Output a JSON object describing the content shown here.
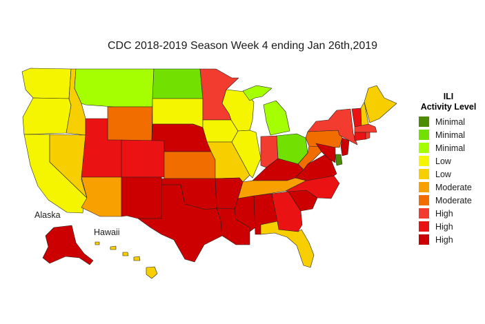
{
  "title": "CDC 2018-2019 Season Week 4 ending Jan 26th,2019",
  "map_labels": {
    "alaska": "Alaska",
    "hawaii": "Hawaii"
  },
  "legend": {
    "title_line1": "ILI",
    "title_line2": "Activity Level",
    "items": [
      {
        "label": "Minimal",
        "color": "#4c8c00"
      },
      {
        "label": "Minimal",
        "color": "#72e000"
      },
      {
        "label": "Minimal",
        "color": "#a6ff00"
      },
      {
        "label": "Low",
        "color": "#f5f500"
      },
      {
        "label": "Low",
        "color": "#f7cf00"
      },
      {
        "label": "Moderate",
        "color": "#f7a000"
      },
      {
        "label": "Moderate",
        "color": "#f26d00"
      },
      {
        "label": "High",
        "color": "#f23c30"
      },
      {
        "label": "High",
        "color": "#ea1212"
      },
      {
        "label": "High",
        "color": "#cc0000"
      }
    ]
  },
  "state_levels": {
    "WA": 4,
    "OR": 4,
    "CA": 4,
    "ID": 5,
    "NV": 5,
    "MT": 3,
    "WY": 7,
    "UT": 9,
    "AZ": 6,
    "CO": 9,
    "NM": 10,
    "ND": 2,
    "SD": 4,
    "NE": 10,
    "KS": 7,
    "OK": 10,
    "TX": 10,
    "MN": 8,
    "IA": 4,
    "MO": 5,
    "AR": 10,
    "LA": 10,
    "WI": 4,
    "IL": 4,
    "MI": 3,
    "IN": 8,
    "OH": 2,
    "KY": 10,
    "TN": 6,
    "MS": 10,
    "AL": 10,
    "GA": 9,
    "FL": 5,
    "SC": 10,
    "NC": 9,
    "VA": 10,
    "WV": 7,
    "PA": 7,
    "NY": 8,
    "VT": 9,
    "NH": 5,
    "ME": 5,
    "MA": 8,
    "CT": 9,
    "RI": 8,
    "NJ": 10,
    "DE": 1,
    "MD": 10,
    "AK": 10,
    "HI": 5
  }
}
